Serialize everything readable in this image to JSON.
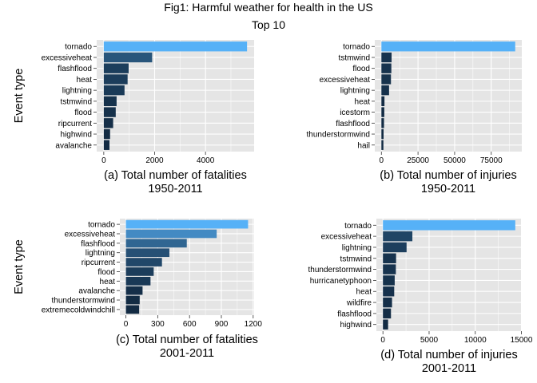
{
  "figure": {
    "title": "Fig1: Harmful weather for health in the US",
    "subtitle": "Top 10"
  },
  "colors": {
    "panel_bg": "#e5e5e5",
    "grid": "#ffffff",
    "bar_low": "#132b43",
    "bar_high": "#56b1f7"
  },
  "chart_data": [
    {
      "type": "bar",
      "orientation": "horizontal",
      "ylabel": "Event type",
      "xlabel_line1": "(a) Total number of fatalities",
      "xlabel_line2": "1950-2011",
      "categories": [
        "tornado",
        "excessiveheat",
        "flashflood",
        "heat",
        "lightning",
        "tstmwind",
        "flood",
        "ripcurrent",
        "highwind",
        "avalanche"
      ],
      "values": [
        5633,
        1903,
        978,
        937,
        816,
        504,
        470,
        368,
        248,
        224
      ],
      "xlim": [
        0,
        5633
      ],
      "xticks": [
        0,
        2000,
        4000
      ],
      "xtick_labels": [
        "0",
        "2000",
        "4000"
      ],
      "grid": true
    },
    {
      "type": "bar",
      "orientation": "horizontal",
      "ylabel": "",
      "xlabel_line1": "(b) Total number of injuries",
      "xlabel_line2": "1950-2011",
      "categories": [
        "tornado",
        "tstmwind",
        "flood",
        "excessiveheat",
        "lightning",
        "heat",
        "icestorm",
        "flashflood",
        "thunderstormwind",
        "hail"
      ],
      "values": [
        91346,
        6957,
        6789,
        6525,
        5230,
        2100,
        1975,
        1777,
        1488,
        1361
      ],
      "xlim": [
        0,
        91346
      ],
      "xticks": [
        0,
        25000,
        50000,
        75000
      ],
      "xtick_labels": [
        "0",
        "25000",
        "50000",
        "75000"
      ],
      "grid": true
    },
    {
      "type": "bar",
      "orientation": "horizontal",
      "ylabel": "Event type",
      "xlabel_line1": "(c) Total number of fatalities",
      "xlabel_line2": "2001-2011",
      "categories": [
        "tornado",
        "excessiveheat",
        "flashflood",
        "lightning",
        "ripcurrent",
        "flood",
        "heat",
        "avalanche",
        "thunderstormwind",
        "extremecoldwindchill"
      ],
      "values": [
        1152,
        856,
        574,
        410,
        340,
        262,
        232,
        157,
        130,
        125
      ],
      "xlim": [
        0,
        1152
      ],
      "xticks": [
        0,
        300,
        600,
        900,
        1200
      ],
      "xtick_labels": [
        "0",
        "300",
        "600",
        "900",
        "1200"
      ],
      "grid": true
    },
    {
      "type": "bar",
      "orientation": "horizontal",
      "ylabel": "",
      "xlabel_line1": "(d) Total number of injuries",
      "xlabel_line2": "2001-2011",
      "categories": [
        "tornado",
        "excessiveheat",
        "lightning",
        "tstmwind",
        "thunderstormwind",
        "hurricanetyphoon",
        "heat",
        "wildfire",
        "flashflood",
        "highwind"
      ],
      "values": [
        14331,
        3188,
        2561,
        1425,
        1400,
        1275,
        1222,
        986,
        871,
        560
      ],
      "xlim": [
        0,
        14331
      ],
      "xticks": [
        0,
        5000,
        10000,
        15000
      ],
      "xtick_labels": [
        "0",
        "5000",
        "10000",
        "15000"
      ],
      "grid": true
    }
  ]
}
